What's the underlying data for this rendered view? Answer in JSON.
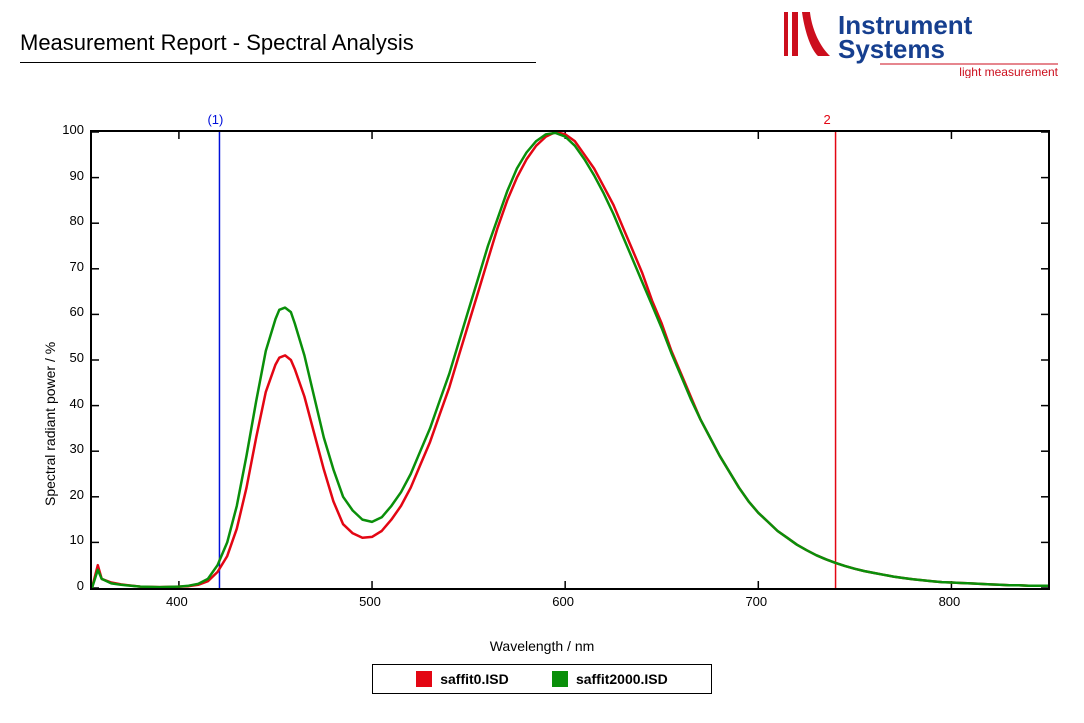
{
  "report": {
    "title": "Measurement Report - Spectral Analysis",
    "logo": {
      "brand_top": "Instrument",
      "brand_bottom": "Systems",
      "tagline": "light measurement",
      "blue": "#163f8f",
      "red": "#cc0e1d"
    }
  },
  "chart": {
    "type": "line",
    "xlabel": "Wavelength / nm",
    "ylabel": "Spectral radiant power / %",
    "xlim": [
      355,
      850
    ],
    "ylim": [
      0,
      100
    ],
    "xticks": [
      400,
      500,
      600,
      700,
      800
    ],
    "yticks": [
      0,
      10,
      20,
      30,
      40,
      50,
      60,
      70,
      80,
      90,
      100
    ],
    "tick_fontsize": 13,
    "label_fontsize": 14,
    "plot_border_color": "#000000",
    "plot_border_width": 2,
    "background_color": "#ffffff",
    "line_width": 2.5,
    "markers": [
      {
        "label": "(1)",
        "x": 421,
        "color": "#0010da"
      },
      {
        "label": "2",
        "x": 740,
        "color": "#e30613"
      }
    ],
    "legend": {
      "border_color": "#000000",
      "items": [
        {
          "label": "saffit0.ISD",
          "color": "#e30613"
        },
        {
          "label": "saffit2000.ISD",
          "color": "#0a8f0a"
        }
      ]
    },
    "series": [
      {
        "name": "saffit0.ISD",
        "color": "#e30613",
        "data": [
          [
            355,
            0
          ],
          [
            358,
            5
          ],
          [
            360,
            2
          ],
          [
            365,
            1.2
          ],
          [
            370,
            0.8
          ],
          [
            380,
            0.3
          ],
          [
            390,
            0.2
          ],
          [
            400,
            0.3
          ],
          [
            405,
            0.4
          ],
          [
            410,
            0.7
          ],
          [
            415,
            1.5
          ],
          [
            420,
            3.5
          ],
          [
            425,
            7
          ],
          [
            430,
            13
          ],
          [
            435,
            22
          ],
          [
            440,
            33
          ],
          [
            445,
            43
          ],
          [
            450,
            49
          ],
          [
            452,
            50.5
          ],
          [
            455,
            51
          ],
          [
            458,
            50
          ],
          [
            460,
            48
          ],
          [
            465,
            42
          ],
          [
            470,
            34
          ],
          [
            475,
            26
          ],
          [
            480,
            19
          ],
          [
            485,
            14
          ],
          [
            490,
            12
          ],
          [
            495,
            11
          ],
          [
            500,
            11.2
          ],
          [
            505,
            12.5
          ],
          [
            510,
            15
          ],
          [
            515,
            18
          ],
          [
            520,
            22
          ],
          [
            525,
            27
          ],
          [
            530,
            32
          ],
          [
            535,
            38
          ],
          [
            540,
            44
          ],
          [
            545,
            51
          ],
          [
            550,
            58
          ],
          [
            555,
            65
          ],
          [
            560,
            72
          ],
          [
            565,
            79
          ],
          [
            570,
            85
          ],
          [
            575,
            90
          ],
          [
            580,
            94
          ],
          [
            585,
            97
          ],
          [
            590,
            99
          ],
          [
            595,
            100
          ],
          [
            600,
            99.5
          ],
          [
            605,
            98
          ],
          [
            610,
            95
          ],
          [
            615,
            92
          ],
          [
            620,
            88
          ],
          [
            625,
            84
          ],
          [
            630,
            79
          ],
          [
            635,
            74
          ],
          [
            640,
            69
          ],
          [
            645,
            63
          ],
          [
            650,
            58
          ],
          [
            655,
            52
          ],
          [
            660,
            47
          ],
          [
            665,
            42
          ],
          [
            670,
            37
          ],
          [
            675,
            33
          ],
          [
            680,
            29
          ],
          [
            685,
            25.5
          ],
          [
            690,
            22
          ],
          [
            695,
            19
          ],
          [
            700,
            16.5
          ],
          [
            705,
            14.5
          ],
          [
            710,
            12.5
          ],
          [
            715,
            11
          ],
          [
            720,
            9.5
          ],
          [
            725,
            8.3
          ],
          [
            730,
            7.2
          ],
          [
            735,
            6.3
          ],
          [
            740,
            5.5
          ],
          [
            745,
            4.8
          ],
          [
            750,
            4.2
          ],
          [
            755,
            3.7
          ],
          [
            760,
            3.3
          ],
          [
            765,
            2.9
          ],
          [
            770,
            2.5
          ],
          [
            775,
            2.2
          ],
          [
            780,
            1.9
          ],
          [
            785,
            1.7
          ],
          [
            790,
            1.5
          ],
          [
            795,
            1.3
          ],
          [
            800,
            1.2
          ],
          [
            805,
            1.1
          ],
          [
            810,
            1
          ],
          [
            815,
            0.9
          ],
          [
            820,
            0.8
          ],
          [
            825,
            0.7
          ],
          [
            830,
            0.6
          ],
          [
            835,
            0.6
          ],
          [
            840,
            0.5
          ],
          [
            845,
            0.5
          ],
          [
            850,
            0.5
          ]
        ]
      },
      {
        "name": "saffit2000.ISD",
        "color": "#0a8f0a",
        "data": [
          [
            355,
            0
          ],
          [
            358,
            4
          ],
          [
            360,
            2
          ],
          [
            365,
            1
          ],
          [
            370,
            0.7
          ],
          [
            380,
            0.3
          ],
          [
            390,
            0.2
          ],
          [
            400,
            0.3
          ],
          [
            405,
            0.5
          ],
          [
            410,
            0.9
          ],
          [
            415,
            2
          ],
          [
            420,
            5
          ],
          [
            425,
            10
          ],
          [
            430,
            18
          ],
          [
            435,
            29
          ],
          [
            440,
            41
          ],
          [
            445,
            52
          ],
          [
            450,
            59
          ],
          [
            452,
            61
          ],
          [
            455,
            61.5
          ],
          [
            458,
            60.5
          ],
          [
            460,
            58
          ],
          [
            465,
            51
          ],
          [
            470,
            42
          ],
          [
            475,
            33
          ],
          [
            480,
            26
          ],
          [
            485,
            20
          ],
          [
            490,
            17
          ],
          [
            495,
            15
          ],
          [
            500,
            14.5
          ],
          [
            505,
            15.5
          ],
          [
            510,
            18
          ],
          [
            515,
            21
          ],
          [
            520,
            25
          ],
          [
            525,
            30
          ],
          [
            530,
            35
          ],
          [
            535,
            41
          ],
          [
            540,
            47
          ],
          [
            545,
            54
          ],
          [
            550,
            61
          ],
          [
            555,
            68
          ],
          [
            560,
            75
          ],
          [
            565,
            81
          ],
          [
            570,
            87
          ],
          [
            575,
            92
          ],
          [
            580,
            95.5
          ],
          [
            585,
            98
          ],
          [
            590,
            99.5
          ],
          [
            595,
            99.8
          ],
          [
            600,
            99
          ],
          [
            605,
            97
          ],
          [
            610,
            94
          ],
          [
            615,
            90.5
          ],
          [
            620,
            86.5
          ],
          [
            625,
            82
          ],
          [
            630,
            77
          ],
          [
            635,
            72
          ],
          [
            640,
            67
          ],
          [
            645,
            62
          ],
          [
            650,
            57
          ],
          [
            655,
            51.5
          ],
          [
            660,
            46.5
          ],
          [
            665,
            41.5
          ],
          [
            670,
            37
          ],
          [
            675,
            33
          ],
          [
            680,
            29
          ],
          [
            685,
            25.5
          ],
          [
            690,
            22
          ],
          [
            695,
            19
          ],
          [
            700,
            16.5
          ],
          [
            705,
            14.5
          ],
          [
            710,
            12.5
          ],
          [
            715,
            11
          ],
          [
            720,
            9.5
          ],
          [
            725,
            8.3
          ],
          [
            730,
            7.2
          ],
          [
            735,
            6.3
          ],
          [
            740,
            5.5
          ],
          [
            745,
            4.8
          ],
          [
            750,
            4.2
          ],
          [
            755,
            3.7
          ],
          [
            760,
            3.3
          ],
          [
            765,
            2.9
          ],
          [
            770,
            2.5
          ],
          [
            775,
            2.2
          ],
          [
            780,
            1.9
          ],
          [
            785,
            1.7
          ],
          [
            790,
            1.5
          ],
          [
            795,
            1.3
          ],
          [
            800,
            1.2
          ],
          [
            805,
            1.1
          ],
          [
            810,
            1
          ],
          [
            815,
            0.9
          ],
          [
            820,
            0.8
          ],
          [
            825,
            0.7
          ],
          [
            830,
            0.6
          ],
          [
            835,
            0.6
          ],
          [
            840,
            0.5
          ],
          [
            845,
            0.5
          ],
          [
            850,
            0.5
          ]
        ]
      }
    ]
  }
}
